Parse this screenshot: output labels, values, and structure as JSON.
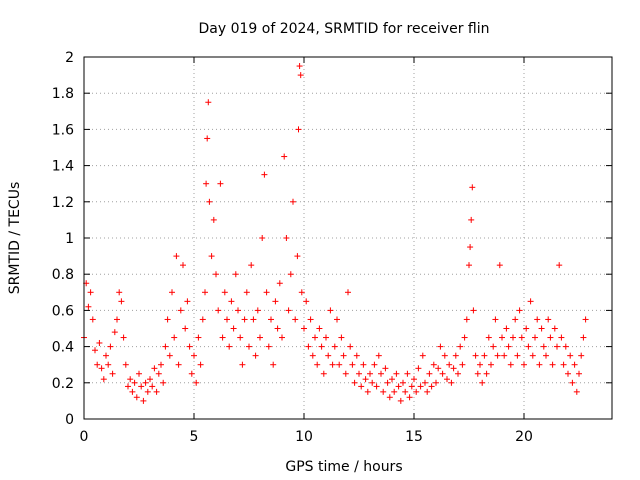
{
  "chart_data": {
    "type": "scatter",
    "title": "Day 019 of 2024, SRMTID for receiver flin",
    "xlabel": "GPS time / hours",
    "ylabel": "SRMTID / TECUs",
    "xlim": [
      0,
      24
    ],
    "ylim": [
      0,
      2
    ],
    "grid": true,
    "marker": "+",
    "color": "#ff0000",
    "x_ticks": [
      {
        "value": 0,
        "label": "0"
      },
      {
        "value": 5,
        "label": "5"
      },
      {
        "value": 10,
        "label": "10"
      },
      {
        "value": 15,
        "label": "15"
      },
      {
        "value": 20,
        "label": "20"
      }
    ],
    "y_ticks": [
      {
        "value": 0,
        "label": "0"
      },
      {
        "value": 0.2,
        "label": "0.2"
      },
      {
        "value": 0.4,
        "label": "0.4"
      },
      {
        "value": 0.6,
        "label": "0.6"
      },
      {
        "value": 0.8,
        "label": "0.8"
      },
      {
        "value": 1.0,
        "label": "1"
      },
      {
        "value": 1.2,
        "label": "1.2"
      },
      {
        "value": 1.4,
        "label": "1.4"
      },
      {
        "value": 1.6,
        "label": "1.6"
      },
      {
        "value": 1.8,
        "label": "1.8"
      },
      {
        "value": 2.0,
        "label": "2"
      }
    ],
    "series": [
      {
        "name": "SRMTID",
        "points": [
          [
            0.0,
            0.45
          ],
          [
            0.1,
            0.75
          ],
          [
            0.2,
            0.62
          ],
          [
            0.3,
            0.7
          ],
          [
            0.4,
            0.55
          ],
          [
            0.5,
            0.38
          ],
          [
            0.6,
            0.3
          ],
          [
            0.7,
            0.42
          ],
          [
            0.8,
            0.28
          ],
          [
            0.9,
            0.22
          ],
          [
            1.0,
            0.35
          ],
          [
            1.1,
            0.3
          ],
          [
            1.2,
            0.4
          ],
          [
            1.3,
            0.25
          ],
          [
            1.4,
            0.48
          ],
          [
            1.5,
            0.55
          ],
          [
            1.6,
            0.7
          ],
          [
            1.7,
            0.65
          ],
          [
            1.8,
            0.45
          ],
          [
            1.9,
            0.3
          ],
          [
            2.0,
            0.18
          ],
          [
            2.1,
            0.22
          ],
          [
            2.2,
            0.15
          ],
          [
            2.3,
            0.2
          ],
          [
            2.4,
            0.12
          ],
          [
            2.5,
            0.25
          ],
          [
            2.6,
            0.18
          ],
          [
            2.7,
            0.1
          ],
          [
            2.8,
            0.2
          ],
          [
            2.9,
            0.15
          ],
          [
            3.0,
            0.22
          ],
          [
            3.1,
            0.18
          ],
          [
            3.2,
            0.28
          ],
          [
            3.3,
            0.15
          ],
          [
            3.4,
            0.25
          ],
          [
            3.5,
            0.3
          ],
          [
            3.6,
            0.2
          ],
          [
            3.7,
            0.4
          ],
          [
            3.8,
            0.55
          ],
          [
            3.9,
            0.35
          ],
          [
            4.0,
            0.7
          ],
          [
            4.1,
            0.45
          ],
          [
            4.2,
            0.9
          ],
          [
            4.3,
            0.3
          ],
          [
            4.4,
            0.6
          ],
          [
            4.5,
            0.85
          ],
          [
            4.6,
            0.5
          ],
          [
            4.7,
            0.65
          ],
          [
            4.8,
            0.4
          ],
          [
            4.9,
            0.25
          ],
          [
            5.0,
            0.35
          ],
          [
            5.1,
            0.2
          ],
          [
            5.2,
            0.45
          ],
          [
            5.3,
            0.3
          ],
          [
            5.4,
            0.55
          ],
          [
            5.5,
            0.7
          ],
          [
            5.55,
            1.3
          ],
          [
            5.6,
            1.55
          ],
          [
            5.65,
            1.75
          ],
          [
            5.7,
            1.2
          ],
          [
            5.8,
            0.9
          ],
          [
            5.9,
            1.1
          ],
          [
            6.0,
            0.8
          ],
          [
            6.1,
            0.6
          ],
          [
            6.2,
            1.3
          ],
          [
            6.3,
            0.45
          ],
          [
            6.4,
            0.7
          ],
          [
            6.5,
            0.55
          ],
          [
            6.6,
            0.4
          ],
          [
            6.7,
            0.65
          ],
          [
            6.8,
            0.5
          ],
          [
            6.9,
            0.8
          ],
          [
            7.0,
            0.6
          ],
          [
            7.1,
            0.45
          ],
          [
            7.2,
            0.3
          ],
          [
            7.3,
            0.55
          ],
          [
            7.4,
            0.7
          ],
          [
            7.5,
            0.4
          ],
          [
            7.6,
            0.85
          ],
          [
            7.7,
            0.55
          ],
          [
            7.8,
            0.35
          ],
          [
            7.9,
            0.6
          ],
          [
            8.0,
            0.45
          ],
          [
            8.1,
            1.0
          ],
          [
            8.2,
            1.35
          ],
          [
            8.3,
            0.7
          ],
          [
            8.4,
            0.4
          ],
          [
            8.5,
            0.55
          ],
          [
            8.6,
            0.3
          ],
          [
            8.7,
            0.65
          ],
          [
            8.8,
            0.5
          ],
          [
            8.9,
            0.75
          ],
          [
            9.0,
            0.45
          ],
          [
            9.1,
            1.45
          ],
          [
            9.2,
            1.0
          ],
          [
            9.3,
            0.6
          ],
          [
            9.4,
            0.8
          ],
          [
            9.5,
            1.2
          ],
          [
            9.6,
            0.55
          ],
          [
            9.7,
            0.9
          ],
          [
            9.75,
            1.6
          ],
          [
            9.8,
            1.95
          ],
          [
            9.85,
            1.9
          ],
          [
            9.9,
            0.7
          ],
          [
            10.0,
            0.5
          ],
          [
            10.1,
            0.65
          ],
          [
            10.2,
            0.4
          ],
          [
            10.3,
            0.55
          ],
          [
            10.4,
            0.35
          ],
          [
            10.5,
            0.45
          ],
          [
            10.6,
            0.3
          ],
          [
            10.7,
            0.5
          ],
          [
            10.8,
            0.4
          ],
          [
            10.9,
            0.25
          ],
          [
            11.0,
            0.45
          ],
          [
            11.1,
            0.35
          ],
          [
            11.2,
            0.6
          ],
          [
            11.3,
            0.3
          ],
          [
            11.4,
            0.4
          ],
          [
            11.5,
            0.55
          ],
          [
            11.6,
            0.3
          ],
          [
            11.7,
            0.45
          ],
          [
            11.8,
            0.35
          ],
          [
            11.9,
            0.25
          ],
          [
            12.0,
            0.7
          ],
          [
            12.1,
            0.4
          ],
          [
            12.2,
            0.3
          ],
          [
            12.3,
            0.2
          ],
          [
            12.4,
            0.35
          ],
          [
            12.5,
            0.25
          ],
          [
            12.6,
            0.18
          ],
          [
            12.7,
            0.3
          ],
          [
            12.8,
            0.22
          ],
          [
            12.9,
            0.15
          ],
          [
            13.0,
            0.25
          ],
          [
            13.1,
            0.2
          ],
          [
            13.2,
            0.3
          ],
          [
            13.3,
            0.18
          ],
          [
            13.4,
            0.35
          ],
          [
            13.5,
            0.25
          ],
          [
            13.6,
            0.15
          ],
          [
            13.7,
            0.28
          ],
          [
            13.8,
            0.2
          ],
          [
            13.9,
            0.12
          ],
          [
            14.0,
            0.22
          ],
          [
            14.1,
            0.15
          ],
          [
            14.2,
            0.25
          ],
          [
            14.3,
            0.18
          ],
          [
            14.4,
            0.1
          ],
          [
            14.5,
            0.2
          ],
          [
            14.6,
            0.15
          ],
          [
            14.7,
            0.25
          ],
          [
            14.8,
            0.12
          ],
          [
            14.9,
            0.18
          ],
          [
            15.0,
            0.22
          ],
          [
            15.1,
            0.15
          ],
          [
            15.2,
            0.28
          ],
          [
            15.3,
            0.18
          ],
          [
            15.4,
            0.35
          ],
          [
            15.5,
            0.2
          ],
          [
            15.6,
            0.15
          ],
          [
            15.7,
            0.25
          ],
          [
            15.8,
            0.18
          ],
          [
            15.9,
            0.3
          ],
          [
            16.0,
            0.2
          ],
          [
            16.1,
            0.28
          ],
          [
            16.2,
            0.4
          ],
          [
            16.3,
            0.25
          ],
          [
            16.4,
            0.35
          ],
          [
            16.5,
            0.22
          ],
          [
            16.6,
            0.3
          ],
          [
            16.7,
            0.2
          ],
          [
            16.8,
            0.28
          ],
          [
            16.9,
            0.35
          ],
          [
            17.0,
            0.25
          ],
          [
            17.1,
            0.4
          ],
          [
            17.2,
            0.3
          ],
          [
            17.3,
            0.45
          ],
          [
            17.4,
            0.55
          ],
          [
            17.5,
            0.85
          ],
          [
            17.55,
            0.95
          ],
          [
            17.6,
            1.1
          ],
          [
            17.65,
            1.28
          ],
          [
            17.7,
            0.6
          ],
          [
            17.8,
            0.35
          ],
          [
            17.9,
            0.25
          ],
          [
            18.0,
            0.3
          ],
          [
            18.1,
            0.2
          ],
          [
            18.2,
            0.35
          ],
          [
            18.3,
            0.25
          ],
          [
            18.4,
            0.45
          ],
          [
            18.5,
            0.3
          ],
          [
            18.6,
            0.4
          ],
          [
            18.7,
            0.55
          ],
          [
            18.8,
            0.35
          ],
          [
            18.9,
            0.85
          ],
          [
            19.0,
            0.45
          ],
          [
            19.1,
            0.35
          ],
          [
            19.2,
            0.5
          ],
          [
            19.3,
            0.4
          ],
          [
            19.4,
            0.3
          ],
          [
            19.5,
            0.45
          ],
          [
            19.6,
            0.55
          ],
          [
            19.7,
            0.35
          ],
          [
            19.8,
            0.6
          ],
          [
            19.9,
            0.45
          ],
          [
            20.0,
            0.3
          ],
          [
            20.1,
            0.5
          ],
          [
            20.2,
            0.4
          ],
          [
            20.3,
            0.65
          ],
          [
            20.4,
            0.35
          ],
          [
            20.5,
            0.45
          ],
          [
            20.6,
            0.55
          ],
          [
            20.7,
            0.3
          ],
          [
            20.8,
            0.5
          ],
          [
            20.9,
            0.4
          ],
          [
            21.0,
            0.35
          ],
          [
            21.1,
            0.55
          ],
          [
            21.2,
            0.45
          ],
          [
            21.3,
            0.3
          ],
          [
            21.4,
            0.5
          ],
          [
            21.5,
            0.4
          ],
          [
            21.6,
            0.85
          ],
          [
            21.7,
            0.45
          ],
          [
            21.8,
            0.3
          ],
          [
            21.9,
            0.4
          ],
          [
            22.0,
            0.25
          ],
          [
            22.1,
            0.35
          ],
          [
            22.2,
            0.2
          ],
          [
            22.3,
            0.3
          ],
          [
            22.4,
            0.15
          ],
          [
            22.5,
            0.25
          ],
          [
            22.6,
            0.35
          ],
          [
            22.7,
            0.45
          ],
          [
            22.8,
            0.55
          ]
        ]
      }
    ]
  }
}
